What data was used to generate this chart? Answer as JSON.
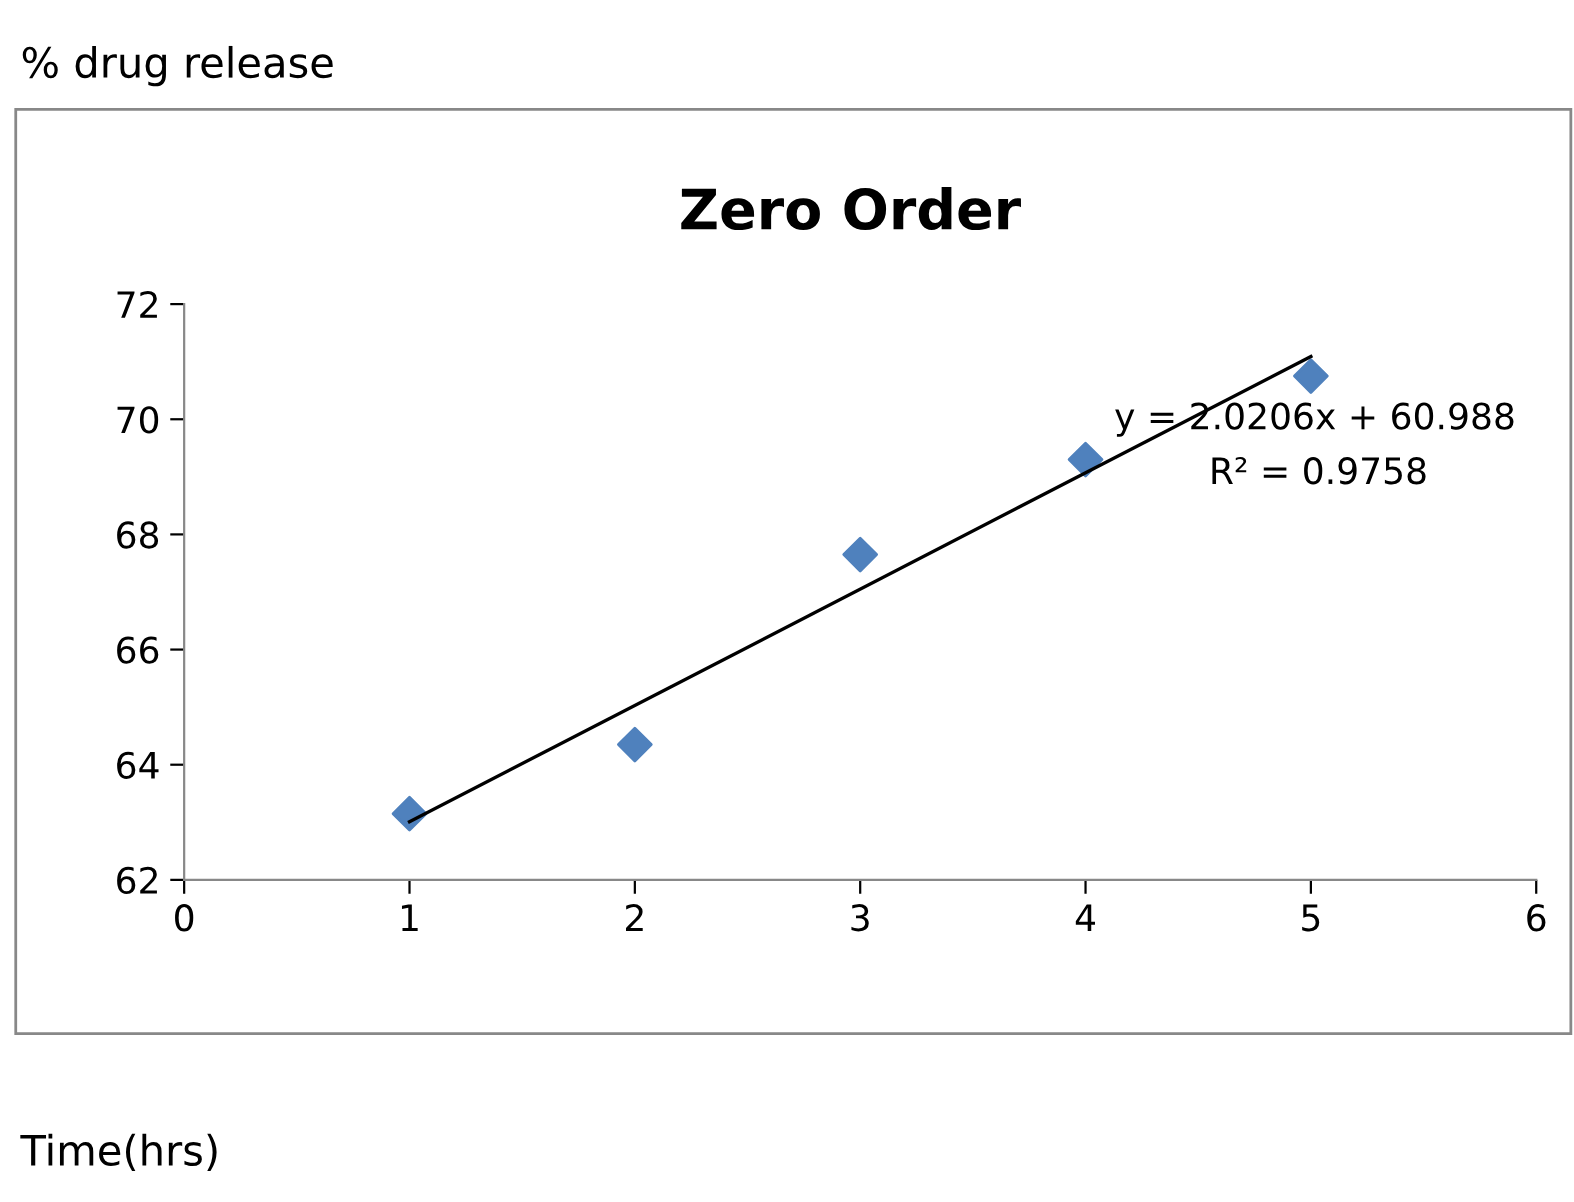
{
  "chart_data": {
    "type": "scatter",
    "title": "Zero Order",
    "xlabel": "Time(hrs)",
    "ylabel": "% drug release",
    "x": [
      1,
      2,
      3,
      4,
      5
    ],
    "series": [
      {
        "color": "#4f81bd",
        "marker": "diamond",
        "values": [
          63.15,
          64.35,
          67.65,
          69.3,
          70.75
        ]
      },
      {
        "type": "line",
        "color": "#000000",
        "marker": "none",
        "x": [
          1,
          5
        ],
        "values": [
          63.01,
          71.09
        ]
      }
    ],
    "annotations": [
      "y = 2.0206x + 60.988",
      "R² = 0.9758"
    ],
    "xlim": [
      0,
      6
    ],
    "ylim": [
      62,
      72
    ],
    "xticks": [
      0,
      1,
      2,
      3,
      4,
      5,
      6
    ],
    "yticks": [
      62,
      64,
      66,
      68,
      70,
      72
    ],
    "grid": false,
    "legend": false
  }
}
